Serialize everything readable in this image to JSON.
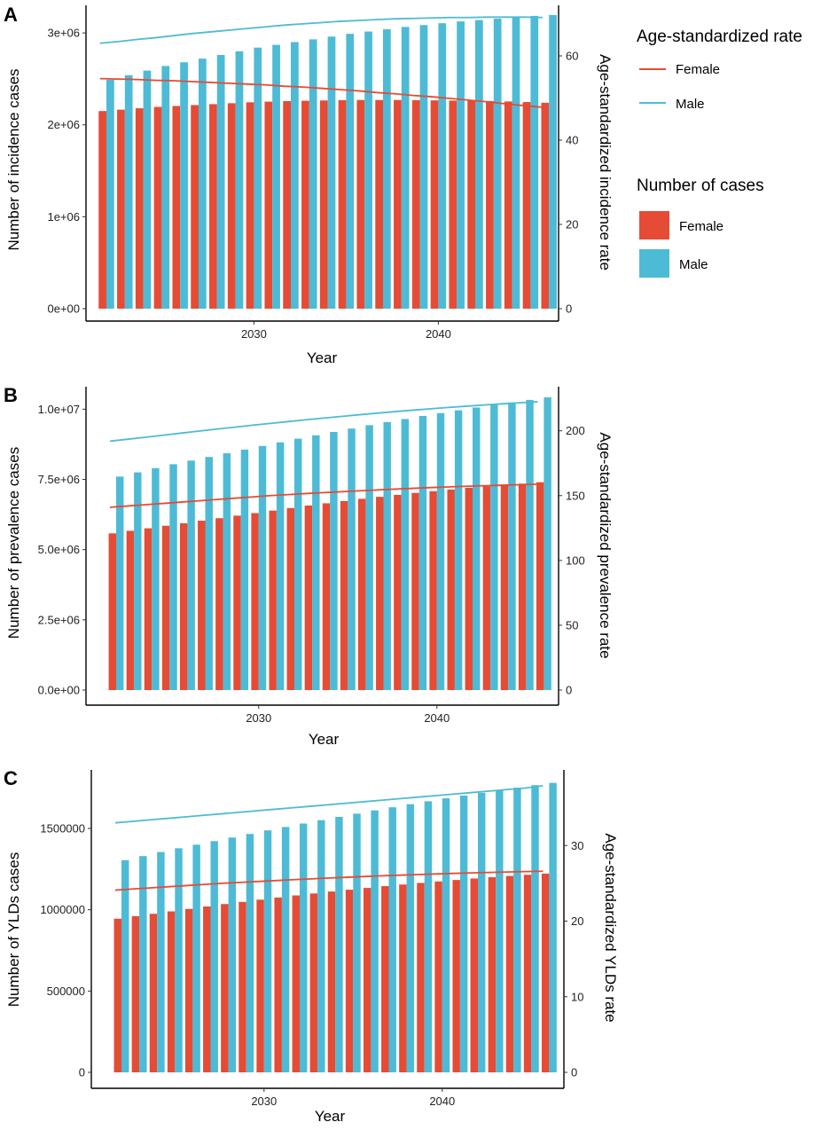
{
  "colors": {
    "female": "#E64B35",
    "male": "#4DBBD5"
  },
  "legend": {
    "rate_title": "Age-standardized rate",
    "cases_title": "Number of cases",
    "female_label": "Female",
    "male_label": "Male"
  },
  "chart_data": [
    {
      "panel": "A",
      "type": "bar",
      "xlabel": "Year",
      "ylabel": "Number of incidence cases",
      "y2label": "Age-standardized incidence rate",
      "xticks": [
        "2030",
        "2040"
      ],
      "ylim": [
        0,
        3300000
      ],
      "yticks": [
        "0e+00",
        "1e+06",
        "2e+06",
        "3e+06"
      ],
      "yticks_values": [
        0,
        1000000,
        2000000,
        3000000
      ],
      "y2lim": [
        0,
        72
      ],
      "y2ticks": [
        "0",
        "20",
        "40",
        "60"
      ],
      "y2ticks_values": [
        0,
        20,
        40,
        60
      ],
      "categories": [
        2022,
        2023,
        2024,
        2025,
        2026,
        2027,
        2028,
        2029,
        2030,
        2031,
        2032,
        2033,
        2034,
        2035,
        2036,
        2037,
        2038,
        2039,
        2040,
        2041,
        2042,
        2043,
        2044,
        2045,
        2046
      ],
      "series": [
        {
          "name": "Female",
          "kind": "bar",
          "values": [
            2150000,
            2165000,
            2180000,
            2195000,
            2205000,
            2215000,
            2225000,
            2235000,
            2245000,
            2252000,
            2258000,
            2262000,
            2265000,
            2268000,
            2270000,
            2270000,
            2270000,
            2268000,
            2266000,
            2264000,
            2262000,
            2258000,
            2254000,
            2248000,
            2240000
          ]
        },
        {
          "name": "Male",
          "kind": "bar",
          "values": [
            2490000,
            2540000,
            2590000,
            2640000,
            2680000,
            2720000,
            2760000,
            2800000,
            2840000,
            2870000,
            2900000,
            2930000,
            2960000,
            2990000,
            3015000,
            3040000,
            3065000,
            3085000,
            3105000,
            3125000,
            3140000,
            3155000,
            3170000,
            3185000,
            3195000
          ]
        },
        {
          "name": "Female",
          "kind": "line",
          "values": [
            54.6,
            54.5,
            54.4,
            54.2,
            54.1,
            53.9,
            53.7,
            53.5,
            53.3,
            53.1,
            52.8,
            52.6,
            52.3,
            52.0,
            51.7,
            51.3,
            51.0,
            50.6,
            50.3,
            49.9,
            49.5,
            49.1,
            48.6,
            48.2,
            47.8
          ]
        },
        {
          "name": "Male",
          "kind": "line",
          "values": [
            63.0,
            63.4,
            63.9,
            64.3,
            64.8,
            65.3,
            65.7,
            66.1,
            66.5,
            66.9,
            67.3,
            67.6,
            67.9,
            68.2,
            68.4,
            68.6,
            68.8,
            68.9,
            69.0,
            69.1,
            69.1,
            69.2,
            69.2,
            69.2,
            69.1
          ]
        }
      ]
    },
    {
      "panel": "B",
      "type": "bar",
      "xlabel": "Year",
      "ylabel": "Number of prevalence cases",
      "y2label": "Age-standardized prevalence rate",
      "xticks": [
        "2030",
        "2040"
      ],
      "ylim": [
        0,
        10800000
      ],
      "yticks": [
        "0.0e+00",
        "2.5e+06",
        "5.0e+06",
        "7.5e+06",
        "1.0e+07"
      ],
      "yticks_values": [
        0,
        2500000,
        5000000,
        7500000,
        10000000
      ],
      "y2lim": [
        0,
        234
      ],
      "y2ticks": [
        "0",
        "50",
        "100",
        "150",
        "200"
      ],
      "y2ticks_values": [
        0,
        50,
        100,
        150,
        200
      ],
      "categories": [
        2022,
        2023,
        2024,
        2025,
        2026,
        2027,
        2028,
        2029,
        2030,
        2031,
        2032,
        2033,
        2034,
        2035,
        2036,
        2037,
        2038,
        2039,
        2040,
        2041,
        2042,
        2043,
        2044,
        2045,
        2046
      ],
      "series": [
        {
          "name": "Female",
          "kind": "bar",
          "values": [
            5580000,
            5670000,
            5760000,
            5850000,
            5940000,
            6030000,
            6120000,
            6210000,
            6300000,
            6390000,
            6480000,
            6570000,
            6650000,
            6730000,
            6810000,
            6880000,
            6950000,
            7020000,
            7080000,
            7140000,
            7200000,
            7250000,
            7300000,
            7350000,
            7400000
          ]
        },
        {
          "name": "Male",
          "kind": "bar",
          "values": [
            7600000,
            7750000,
            7900000,
            8040000,
            8170000,
            8300000,
            8430000,
            8560000,
            8690000,
            8820000,
            8950000,
            9070000,
            9190000,
            9310000,
            9430000,
            9540000,
            9650000,
            9760000,
            9860000,
            9960000,
            10060000,
            10150000,
            10240000,
            10330000,
            10420000
          ]
        },
        {
          "name": "Female",
          "kind": "line",
          "values": [
            141,
            142,
            143,
            144,
            145,
            146,
            147,
            148,
            149,
            150,
            150.8,
            151.6,
            152.3,
            153,
            153.7,
            154.4,
            155,
            155.6,
            156.2,
            156.7,
            157.2,
            157.6,
            158,
            158.4,
            158.8
          ]
        },
        {
          "name": "Male",
          "kind": "line",
          "values": [
            192,
            193.5,
            195,
            196.6,
            198.2,
            199.8,
            201.3,
            202.8,
            204.3,
            205.7,
            207.1,
            208.5,
            209.8,
            211.1,
            212.4,
            213.6,
            214.8,
            215.9,
            217,
            218,
            219,
            219.9,
            220.8,
            221.6,
            222.4
          ]
        }
      ]
    },
    {
      "panel": "C",
      "type": "bar",
      "xlabel": "Year",
      "ylabel": "Number of YLDs cases",
      "y2label": "Age-standardized YLDs rate",
      "xticks": [
        "2030",
        "2040"
      ],
      "ylim": [
        0,
        1860000
      ],
      "yticks": [
        "0",
        "500000",
        "1000000",
        "1500000"
      ],
      "yticks_values": [
        0,
        500000,
        1000000,
        1500000
      ],
      "y2lim": [
        0,
        40
      ],
      "y2ticks": [
        "0",
        "10",
        "20",
        "30"
      ],
      "y2ticks_values": [
        0,
        10,
        20,
        30
      ],
      "categories": [
        2022,
        2023,
        2024,
        2025,
        2026,
        2027,
        2028,
        2029,
        2030,
        2031,
        2032,
        2033,
        2034,
        2035,
        2036,
        2037,
        2038,
        2039,
        2040,
        2041,
        2042,
        2043,
        2044,
        2045,
        2046
      ],
      "series": [
        {
          "name": "Female",
          "kind": "bar",
          "values": [
            945000,
            960000,
            975000,
            990000,
            1005000,
            1020000,
            1035000,
            1048000,
            1062000,
            1075000,
            1088000,
            1100000,
            1112000,
            1123000,
            1134000,
            1145000,
            1155000,
            1165000,
            1174000,
            1183000,
            1192000,
            1200000,
            1208000,
            1215000,
            1222000
          ]
        },
        {
          "name": "Male",
          "kind": "bar",
          "values": [
            1305000,
            1330000,
            1355000,
            1378000,
            1400000,
            1422000,
            1444000,
            1466000,
            1488000,
            1509000,
            1530000,
            1551000,
            1571000,
            1591000,
            1611000,
            1630000,
            1649000,
            1667000,
            1685000,
            1702000,
            1719000,
            1735000,
            1751000,
            1766000,
            1780000
          ]
        },
        {
          "name": "Female",
          "kind": "line",
          "values": [
            24.1,
            24.25,
            24.4,
            24.55,
            24.7,
            24.85,
            25.0,
            25.12,
            25.24,
            25.36,
            25.48,
            25.59,
            25.7,
            25.8,
            25.9,
            26.0,
            26.08,
            26.16,
            26.24,
            26.31,
            26.38,
            26.44,
            26.5,
            26.55,
            26.6
          ]
        },
        {
          "name": "Male",
          "kind": "line",
          "values": [
            33.0,
            33.2,
            33.4,
            33.6,
            33.8,
            34.0,
            34.2,
            34.4,
            34.6,
            34.8,
            35.0,
            35.2,
            35.4,
            35.6,
            35.8,
            36.0,
            36.2,
            36.4,
            36.6,
            36.8,
            37.0,
            37.2,
            37.4,
            37.6,
            37.9
          ]
        }
      ]
    }
  ]
}
